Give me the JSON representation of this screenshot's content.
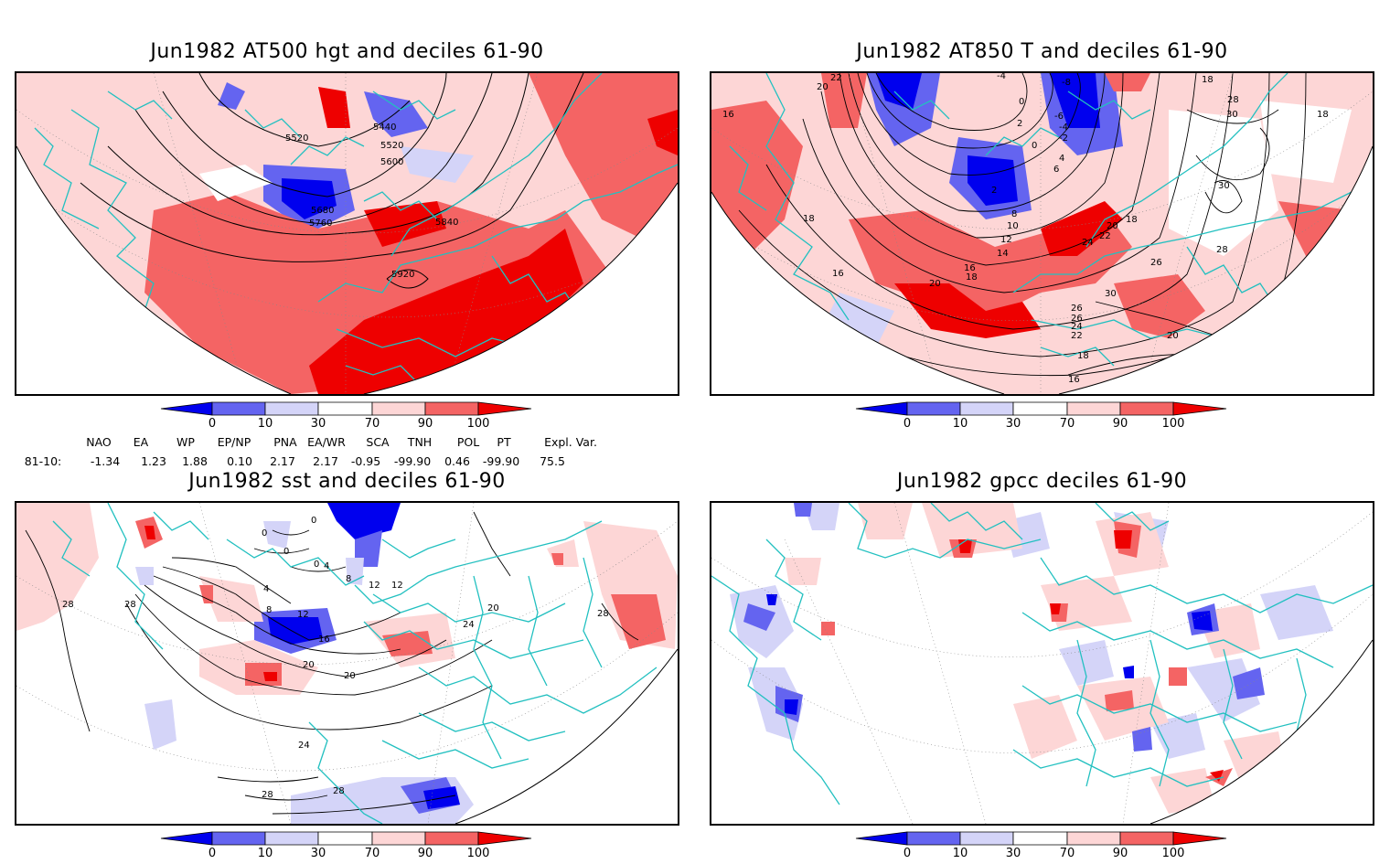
{
  "panels": [
    {
      "title": "Jun1982 AT500 hgt and deciles 61-90",
      "contour_labels": [
        "5440",
        "5520",
        "5520",
        "5600",
        "5680",
        "5760",
        "5840",
        "5920"
      ]
    },
    {
      "title": "Jun1982 AT850 T and deciles 61-90",
      "contour_labels": [
        "22",
        "20",
        "-4",
        "-8",
        "0",
        "2",
        "-6",
        "-4",
        "-2",
        "0",
        "4",
        "6",
        "2",
        "8",
        "10",
        "12",
        "14",
        "16",
        "18",
        "20",
        "18",
        "20",
        "22",
        "24",
        "26",
        "26",
        "26",
        "24",
        "22",
        "18",
        "16",
        "16",
        "18",
        "20",
        "28",
        "28",
        "30",
        "30",
        "30",
        "18",
        "18",
        "16"
      ]
    },
    {
      "title": "Jun1982 sst and deciles 61-90",
      "contour_labels": [
        "0",
        "0",
        "0",
        "4",
        "8",
        "12",
        "0",
        "12",
        "4",
        "8",
        "12",
        "16",
        "20",
        "20",
        "24",
        "24",
        "28",
        "28",
        "28",
        "20",
        "28",
        "28"
      ]
    },
    {
      "title": "Jun1982 gpcc deciles 61-90",
      "contour_labels": []
    }
  ],
  "colorbar": {
    "tick_labels": [
      "0",
      "10",
      "30",
      "70",
      "90",
      "100"
    ],
    "colors": [
      "#0000ee",
      "#6464f0",
      "#d4d4f8",
      "#ffffff",
      "#fdd6d6",
      "#f46464",
      "#ee0000"
    ]
  },
  "teleconnections": {
    "row_label": "81-10:",
    "headers": [
      "NAO",
      "EA",
      "WP",
      "EP/NP",
      "PNA",
      "EA/WR",
      "SCA",
      "TNH",
      "POL",
      "PT",
      "Expl. Var."
    ],
    "values": [
      "-1.34",
      "1.23",
      "1.88",
      "0.10",
      "2.17",
      "2.17",
      "-0.95",
      "-99.90",
      "0.46",
      "-99.90",
      "75.5"
    ]
  },
  "colors": {
    "coast": "#22c0c0",
    "contour": "#000000",
    "border": "#000000"
  }
}
